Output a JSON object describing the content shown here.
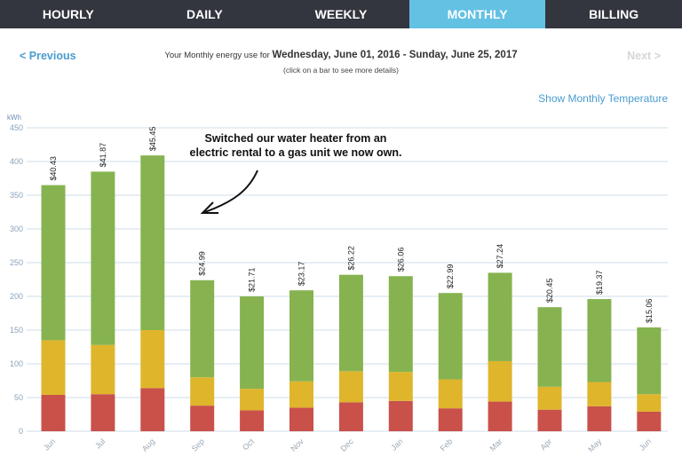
{
  "tabs": [
    "HOURLY",
    "DAILY",
    "WEEKLY",
    "MONTHLY",
    "BILLING"
  ],
  "active_tab": "MONTHLY",
  "nav": {
    "previous": "< Previous",
    "next": "Next >"
  },
  "period": {
    "prefix": "Your Monthly energy use for",
    "range": "Wednesday, June 01, 2016 - Sunday, June 25, 2017",
    "hint": "(click on a bar to see more details)"
  },
  "temperature_link": "Show Monthly Temperature",
  "annotation": "Switched our water heater from an electric rental to a gas unit we now own.",
  "colors": {
    "tier1": "#c9514a",
    "tier2": "#dfb52c",
    "tier3": "#86b350",
    "grid": "#cfdde8",
    "tab_active": "#63c1e4",
    "tab_bg": "#33363f"
  },
  "chart_data": {
    "type": "bar",
    "stacked": true,
    "ylabel": "kWh",
    "ylim": [
      0,
      450
    ],
    "yticks": [
      0,
      50,
      100,
      150,
      200,
      250,
      300,
      350,
      400,
      450
    ],
    "grid": true,
    "categories": [
      "Jun",
      "Jul",
      "Aug",
      "Sep",
      "Oct",
      "Nov",
      "Dec",
      "Jan",
      "Feb",
      "Mar",
      "Apr",
      "May",
      "Jun"
    ],
    "series": [
      {
        "values": [
          54,
          55,
          64,
          38,
          31,
          35,
          43,
          45,
          34,
          44,
          32,
          37,
          29
        ]
      },
      {
        "values": [
          81,
          73,
          86,
          42,
          32,
          39,
          46,
          43,
          43,
          60,
          34,
          36,
          26
        ]
      },
      {
        "values": [
          230,
          257,
          259,
          144,
          137,
          135,
          143,
          142,
          128,
          131,
          118,
          123,
          99
        ]
      }
    ],
    "totals": [
      365,
      385,
      409,
      224,
      200,
      209,
      232,
      230,
      205,
      235,
      184,
      196,
      154
    ],
    "data_labels": [
      "$40.43",
      "$41.87",
      "$45.45",
      "$24.99",
      "$21.71",
      "$23.17",
      "$26.22",
      "$26.06",
      "$22.99",
      "$27.24",
      "$20.45",
      "$19.37",
      "$15.06"
    ]
  }
}
